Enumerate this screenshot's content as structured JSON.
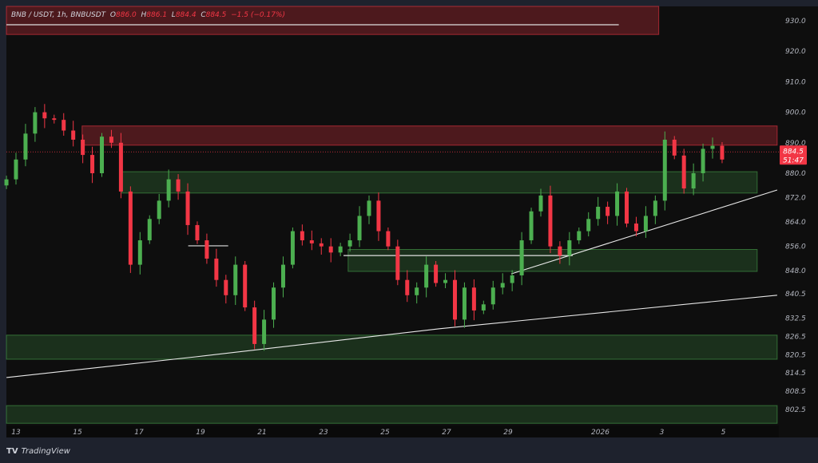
{
  "header": {
    "symbol": "BNB / USDT, 1h, BNBUSDT",
    "o_label": "O",
    "o": "886.0",
    "h_label": "H",
    "h": "886.1",
    "l_label": "L",
    "l": "884.4",
    "c_label": "C",
    "c": "884.5",
    "change": "−1.5 (−0.17%)"
  },
  "price_label": {
    "price": "884.5",
    "countdown": "51:47"
  },
  "brand": {
    "name": "TradingView",
    "logo": "TV"
  },
  "colors": {
    "up": "#4caf50",
    "down": "#f23645",
    "bg": "#0e0e0e",
    "axis_bg": "#1e222d"
  },
  "chart_data": {
    "type": "candlestick",
    "title": "BNB / USDT, 1h",
    "x_unit": "day of December 2025 (32 = Jan 1 2026)",
    "ylim": [
      796,
      935
    ],
    "y_ticks": [
      "930.0",
      "920.0",
      "910.0",
      "900.0",
      "890.0",
      "880.0",
      "872.0",
      "864.0",
      "856.0",
      "848.0",
      "840.5",
      "832.5",
      "826.5",
      "820.5",
      "814.5",
      "808.5",
      "802.5"
    ],
    "x_ticks": [
      {
        "day": 13,
        "label": "13"
      },
      {
        "day": 15,
        "label": "15"
      },
      {
        "day": 17,
        "label": "17"
      },
      {
        "day": 19,
        "label": "19"
      },
      {
        "day": 21,
        "label": "21"
      },
      {
        "day": 23,
        "label": "23"
      },
      {
        "day": 25,
        "label": "25"
      },
      {
        "day": 27,
        "label": "27"
      },
      {
        "day": 29,
        "label": "29"
      },
      {
        "day": 32,
        "label": "2026"
      },
      {
        "day": 34,
        "label": "3"
      },
      {
        "day": 36,
        "label": "5"
      }
    ],
    "time_range": [
      12.69,
      35.96
    ],
    "closes": [
      878,
      884.5,
      893,
      900,
      898,
      897.5,
      894,
      891,
      886,
      880,
      892,
      890,
      874,
      850,
      858,
      865,
      871,
      878,
      874,
      863,
      858,
      852,
      845,
      840,
      850,
      836,
      824,
      832,
      842.5,
      850,
      861,
      858,
      857,
      856,
      854,
      856,
      858,
      866,
      871,
      861,
      856,
      845,
      840,
      842.5,
      850,
      844,
      845,
      832,
      842.5,
      835,
      837,
      842.5,
      844,
      846.5,
      858,
      867.5,
      872.7,
      856,
      853,
      858,
      861,
      865,
      869,
      866,
      874,
      863.5,
      861,
      866,
      871,
      891,
      885.8,
      875,
      880,
      888,
      889,
      884.5
    ],
    "current_price": 884.5,
    "zones": [
      {
        "kind": "supply",
        "from": 12.69,
        "to": 33.9,
        "low": 925.5,
        "high": 935
      },
      {
        "kind": "supply",
        "from": 15.15,
        "to": 37.75,
        "low": 889.2,
        "high": 895.5
      },
      {
        "kind": "demand",
        "from": 16.45,
        "to": 37.1,
        "low": 873.5,
        "high": 880.5
      },
      {
        "kind": "demand",
        "from": 23.8,
        "to": 37.1,
        "low": 847.8,
        "high": 855
      },
      {
        "kind": "demand",
        "from": 12.69,
        "to": 37.75,
        "low": 819,
        "high": 826.9
      },
      {
        "kind": "demand",
        "from": 12.69,
        "to": 37.75,
        "low": 798,
        "high": 803.8
      }
    ],
    "horizontal_lines": [
      {
        "from": 12.69,
        "to": 32.6,
        "price": 928.7
      },
      {
        "from": 18.6,
        "to": 19.9,
        "price": 856.2
      },
      {
        "from": 23.65,
        "to": 31.1,
        "price": 853
      }
    ],
    "trendlines": [
      [
        [
          12.69,
          813
        ],
        [
          18.84,
          819.8
        ],
        [
          26.77,
          829
        ],
        [
          37.75,
          840
        ]
      ],
      [
        [
          29.1,
          847
        ],
        [
          37.75,
          874.5
        ]
      ]
    ]
  }
}
